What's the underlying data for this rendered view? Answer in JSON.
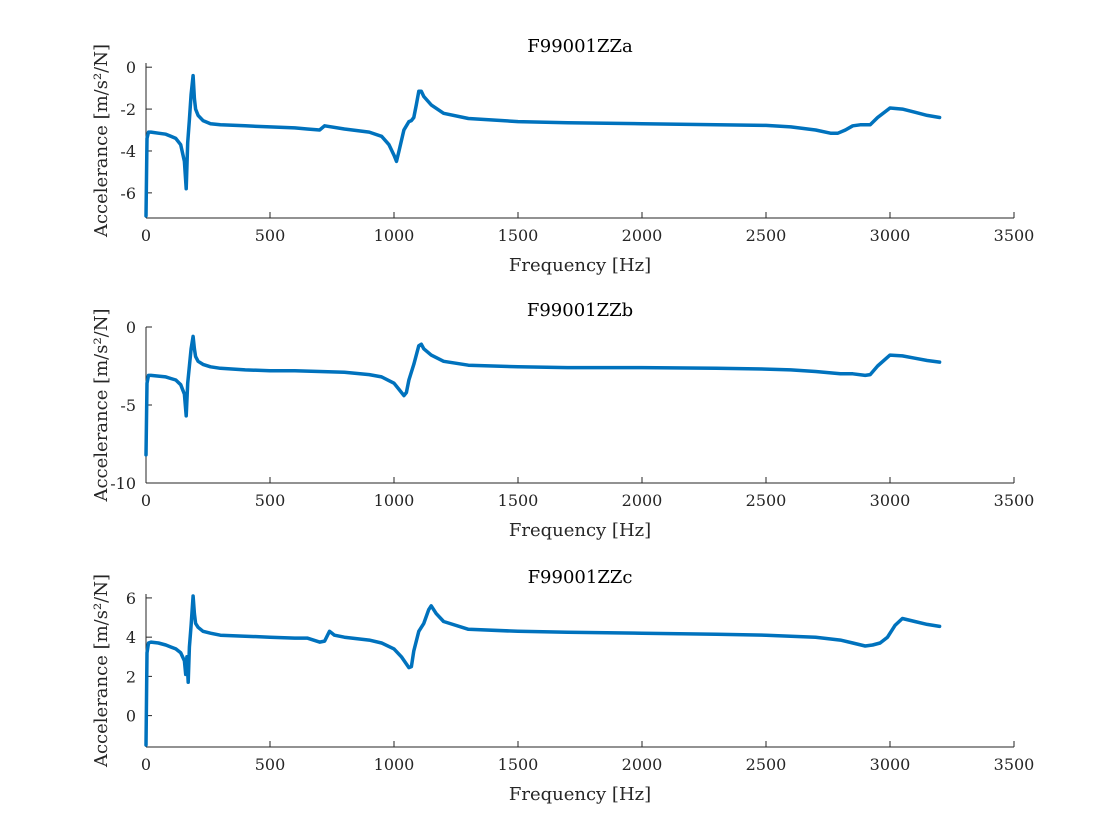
{
  "colors": {
    "series": "#0072BD",
    "axis": "#262626"
  },
  "chart_data": [
    {
      "type": "line",
      "title": "F99001ZZa",
      "xlabel": "Frequency [Hz]",
      "ylabel": "Accelerance [m/s²/N]",
      "xlim": [
        0,
        3500
      ],
      "ylim": [
        -7.2,
        0.2
      ],
      "xticks": [
        "0",
        "500",
        "1000",
        "1500",
        "2000",
        "2500",
        "3000",
        "3500"
      ],
      "yticks": [
        "-6",
        "-4",
        "-2",
        "0"
      ],
      "series": [
        {
          "x": [
            0,
            4,
            10,
            20,
            50,
            80,
            100,
            120,
            140,
            155,
            162,
            168,
            175,
            182,
            190,
            195,
            200,
            210,
            230,
            260,
            300,
            400,
            500,
            600,
            650,
            700,
            720,
            800,
            900,
            950,
            980,
            1000,
            1010,
            1020,
            1040,
            1060,
            1070,
            1080,
            1090,
            1100,
            1110,
            1120,
            1150,
            1200,
            1300,
            1500,
            1700,
            2000,
            2300,
            2500,
            2600,
            2700,
            2760,
            2790,
            2820,
            2850,
            2880,
            2920,
            2950,
            3000,
            3050,
            3100,
            3150,
            3200
          ],
          "y": [
            -7.1,
            -3.4,
            -3.1,
            -3.1,
            -3.15,
            -3.2,
            -3.3,
            -3.4,
            -3.7,
            -4.5,
            -5.8,
            -3.6,
            -2.5,
            -1.3,
            -0.4,
            -1.5,
            -2.0,
            -2.3,
            -2.55,
            -2.7,
            -2.75,
            -2.8,
            -2.85,
            -2.9,
            -2.95,
            -3.0,
            -2.8,
            -2.95,
            -3.1,
            -3.3,
            -3.7,
            -4.2,
            -4.5,
            -4.0,
            -3.0,
            -2.6,
            -2.55,
            -2.4,
            -1.8,
            -1.15,
            -1.15,
            -1.4,
            -1.8,
            -2.2,
            -2.45,
            -2.6,
            -2.65,
            -2.7,
            -2.75,
            -2.78,
            -2.85,
            -3.0,
            -3.15,
            -3.15,
            -3.0,
            -2.8,
            -2.75,
            -2.75,
            -2.4,
            -1.95,
            -2.0,
            -2.15,
            -2.3,
            -2.4
          ]
        }
      ]
    },
    {
      "type": "line",
      "title": "F99001ZZb",
      "xlabel": "Frequency [Hz]",
      "ylabel": "Accelerance [m/s²/N]",
      "xlim": [
        0,
        3500
      ],
      "ylim": [
        -10,
        0
      ],
      "xticks": [
        "0",
        "500",
        "1000",
        "1500",
        "2000",
        "2500",
        "3000",
        "3500"
      ],
      "yticks": [
        "-10",
        "-5",
        "0"
      ],
      "series": [
        {
          "x": [
            0,
            4,
            10,
            20,
            50,
            80,
            100,
            120,
            140,
            155,
            162,
            168,
            175,
            182,
            190,
            195,
            200,
            210,
            230,
            260,
            300,
            400,
            500,
            600,
            700,
            800,
            900,
            950,
            1000,
            1020,
            1040,
            1050,
            1060,
            1080,
            1100,
            1110,
            1120,
            1150,
            1200,
            1300,
            1500,
            1700,
            2000,
            2300,
            2500,
            2600,
            2700,
            2800,
            2850,
            2900,
            2920,
            2950,
            3000,
            3050,
            3100,
            3150,
            3200
          ],
          "y": [
            -8.2,
            -3.6,
            -3.1,
            -3.1,
            -3.15,
            -3.2,
            -3.3,
            -3.4,
            -3.7,
            -4.3,
            -5.7,
            -3.6,
            -2.5,
            -1.4,
            -0.6,
            -1.4,
            -1.9,
            -2.2,
            -2.4,
            -2.55,
            -2.65,
            -2.75,
            -2.8,
            -2.8,
            -2.85,
            -2.9,
            -3.05,
            -3.2,
            -3.6,
            -4.0,
            -4.4,
            -4.2,
            -3.4,
            -2.4,
            -1.2,
            -1.1,
            -1.4,
            -1.8,
            -2.2,
            -2.45,
            -2.55,
            -2.6,
            -2.6,
            -2.65,
            -2.7,
            -2.75,
            -2.85,
            -3.0,
            -3.0,
            -3.1,
            -3.05,
            -2.5,
            -1.8,
            -1.85,
            -2.0,
            -2.15,
            -2.25
          ]
        }
      ]
    },
    {
      "type": "line",
      "title": "F99001ZZc",
      "xlabel": "Frequency [Hz]",
      "ylabel": "Accelerance [m/s²/N]",
      "xlim": [
        0,
        3500
      ],
      "ylim": [
        -1.6,
        6.2
      ],
      "xticks": [
        "0",
        "500",
        "1000",
        "1500",
        "2000",
        "2500",
        "3000",
        "3500"
      ],
      "yticks": [
        "0",
        "2",
        "4",
        "6"
      ],
      "series": [
        {
          "x": [
            0,
            4,
            10,
            20,
            50,
            80,
            100,
            120,
            140,
            155,
            160,
            165,
            170,
            175,
            182,
            190,
            195,
            200,
            210,
            230,
            260,
            300,
            400,
            500,
            600,
            650,
            700,
            720,
            740,
            760,
            800,
            900,
            950,
            1000,
            1030,
            1060,
            1070,
            1080,
            1100,
            1120,
            1140,
            1150,
            1170,
            1200,
            1300,
            1500,
            1700,
            2000,
            2300,
            2500,
            2700,
            2800,
            2850,
            2900,
            2930,
            2960,
            2990,
            3020,
            3050,
            3100,
            3150,
            3200
          ],
          "y": [
            -1.5,
            3.2,
            3.7,
            3.75,
            3.7,
            3.6,
            3.5,
            3.4,
            3.2,
            2.8,
            2.1,
            3.0,
            1.7,
            3.5,
            4.6,
            6.1,
            5.2,
            4.7,
            4.5,
            4.3,
            4.2,
            4.1,
            4.05,
            4.0,
            3.95,
            3.95,
            3.75,
            3.8,
            4.3,
            4.1,
            4.0,
            3.85,
            3.7,
            3.4,
            3.0,
            2.45,
            2.5,
            3.3,
            4.3,
            4.7,
            5.4,
            5.6,
            5.2,
            4.8,
            4.4,
            4.3,
            4.25,
            4.2,
            4.15,
            4.1,
            4.0,
            3.85,
            3.7,
            3.55,
            3.6,
            3.7,
            4.0,
            4.6,
            4.95,
            4.8,
            4.65,
            4.55
          ]
        }
      ]
    }
  ]
}
